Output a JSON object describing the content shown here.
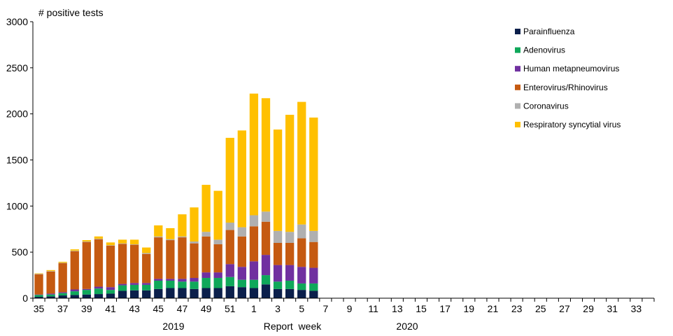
{
  "chart_data": {
    "type": "bar",
    "stacked": true,
    "y_axis_title": "# positive tests",
    "x_axis_title": "Report  week",
    "year_labels": [
      "2019",
      "2020"
    ],
    "ylim": [
      0,
      3000
    ],
    "y_ticks": [
      0,
      500,
      1000,
      1500,
      2000,
      2500,
      3000
    ],
    "grid": false,
    "legend_position": "top-right",
    "x_tick_labels": [
      "35",
      "37",
      "39",
      "41",
      "43",
      "45",
      "47",
      "49",
      "51",
      "1",
      "3",
      "5",
      "7",
      "9",
      "11",
      "13",
      "15",
      "17",
      "19",
      "21",
      "23",
      "25",
      "27",
      "29",
      "31",
      "33"
    ],
    "categories": [
      "35",
      "36",
      "37",
      "38",
      "39",
      "40",
      "41",
      "42",
      "43",
      "44",
      "45",
      "46",
      "47",
      "48",
      "49",
      "50",
      "51",
      "52",
      "1",
      "2",
      "3",
      "4",
      "5",
      "6",
      "7",
      "8",
      "9",
      "10",
      "11",
      "12",
      "13",
      "14",
      "15",
      "16",
      "17",
      "18",
      "19",
      "20",
      "21",
      "22",
      "23",
      "24",
      "25",
      "26",
      "27",
      "28",
      "29",
      "30",
      "31",
      "32",
      "33",
      "34"
    ],
    "series": [
      {
        "name": "Parainfluenza",
        "color": "#0b1f4b",
        "values": [
          15,
          20,
          30,
          35,
          40,
          45,
          50,
          80,
          85,
          85,
          100,
          110,
          110,
          100,
          110,
          110,
          130,
          120,
          110,
          150,
          100,
          100,
          90,
          80,
          null,
          null,
          null,
          null,
          null,
          null,
          null,
          null,
          null,
          null,
          null,
          null,
          null,
          null,
          null,
          null,
          null,
          null,
          null,
          null,
          null,
          null,
          null,
          null,
          null,
          null,
          null,
          null
        ]
      },
      {
        "name": "Adenovirus",
        "color": "#0fa85a",
        "values": [
          20,
          20,
          25,
          40,
          50,
          60,
          40,
          60,
          60,
          60,
          90,
          80,
          70,
          80,
          110,
          110,
          100,
          80,
          90,
          100,
          80,
          90,
          70,
          80,
          null,
          null,
          null,
          null,
          null,
          null,
          null,
          null,
          null,
          null,
          null,
          null,
          null,
          null,
          null,
          null,
          null,
          null,
          null,
          null,
          null,
          null,
          null,
          null,
          null,
          null,
          null,
          null
        ]
      },
      {
        "name": "Human metapneumovirus",
        "color": "#7030a0",
        "values": [
          5,
          10,
          10,
          20,
          10,
          20,
          30,
          15,
          20,
          20,
          20,
          20,
          30,
          40,
          60,
          60,
          140,
          140,
          200,
          220,
          180,
          170,
          180,
          170,
          null,
          null,
          null,
          null,
          null,
          null,
          null,
          null,
          null,
          null,
          null,
          null,
          null,
          null,
          null,
          null,
          null,
          null,
          null,
          null,
          null,
          null,
          null,
          null,
          null,
          null,
          null,
          null
        ]
      },
      {
        "name": "Enterovirus/Rhinovirus",
        "color": "#c55a11",
        "values": [
          220,
          240,
          315,
          415,
          510,
          515,
          450,
          435,
          415,
          315,
          450,
          420,
          450,
          375,
          390,
          305,
          370,
          330,
          380,
          360,
          240,
          240,
          310,
          280,
          null,
          null,
          null,
          null,
          null,
          null,
          null,
          null,
          null,
          null,
          null,
          null,
          null,
          null,
          null,
          null,
          null,
          null,
          null,
          null,
          null,
          null,
          null,
          null,
          null,
          null,
          null,
          null
        ]
      },
      {
        "name": "Coronavirus",
        "color": "#b0b0b0",
        "values": [
          5,
          5,
          5,
          5,
          5,
          5,
          5,
          5,
          5,
          10,
          10,
          10,
          10,
          20,
          50,
          50,
          80,
          100,
          120,
          110,
          130,
          120,
          150,
          120,
          null,
          null,
          null,
          null,
          null,
          null,
          null,
          null,
          null,
          null,
          null,
          null,
          null,
          null,
          null,
          null,
          null,
          null,
          null,
          null,
          null,
          null,
          null,
          null,
          null,
          null,
          null,
          null
        ]
      },
      {
        "name": "Respiratory syncytial virus",
        "color": "#ffc000",
        "values": [
          5,
          10,
          10,
          15,
          15,
          25,
          30,
          40,
          50,
          60,
          120,
          120,
          240,
          370,
          510,
          530,
          920,
          1050,
          1320,
          1230,
          1100,
          1270,
          1330,
          1230,
          null,
          null,
          null,
          null,
          null,
          null,
          null,
          null,
          null,
          null,
          null,
          null,
          null,
          null,
          null,
          null,
          null,
          null,
          null,
          null,
          null,
          null,
          null,
          null,
          null,
          null,
          null,
          null
        ]
      }
    ]
  }
}
